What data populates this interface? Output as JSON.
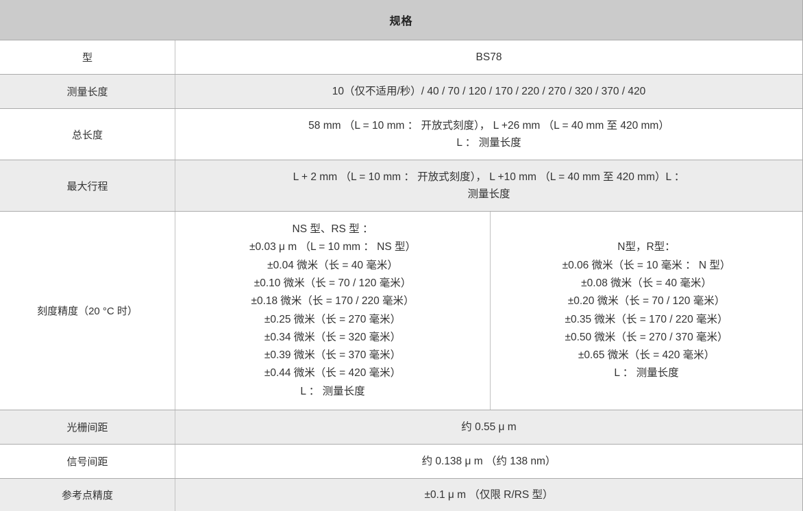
{
  "header": {
    "title": "规格"
  },
  "colors": {
    "header_bg": "#cbcbcb",
    "stripe_bg": "#ececec",
    "border_horizontal": "#ababab",
    "border_vertical": "#c2c2c2",
    "text": "#333333",
    "background": "#ffffff"
  },
  "table": {
    "rows": [
      {
        "label": "型",
        "lines": [
          "BS78"
        ]
      },
      {
        "label": "测量长度",
        "lines": [
          "10（仅不适用/秒）/ 40 / 70 / 120 / 170 / 220 / 270 / 320 / 370 / 420"
        ]
      },
      {
        "label": "总长度",
        "lines": [
          "58 mm （L = 10 mm ： 开放式刻度）， L +26 mm （L = 40 mm 至 420 mm）",
          "L ： 测量长度"
        ]
      },
      {
        "label": "最大行程",
        "lines": [
          "L + 2 mm （L = 10 mm ： 开放式刻度）， L +10 mm （L = 40 mm 至 420 mm）L ：",
          "测量长度"
        ]
      },
      {
        "label": "刻度精度（20 °C 时）",
        "left_lines": [
          "NS 型、RS 型 ：",
          "±0.03 μ m （L = 10 mm ： NS 型）",
          "±0.04 微米（长 = 40 毫米）",
          "±0.10 微米（长 = 70 / 120 毫米）",
          "±0.18 微米（长 = 170 / 220 毫米）",
          "±0.25 微米（长 = 270 毫米）",
          "±0.34 微米（长 = 320 毫米）",
          "±0.39 微米（长 = 370 毫米）",
          "±0.44 微米（长 = 420 毫米）",
          "L ： 测量长度"
        ],
        "right_lines": [
          "N型，R型：",
          "±0.06 微米（长 = 10 毫米 ： N 型）",
          "±0.08 微米（长 = 40 毫米）",
          "±0.20 微米（长 = 70 / 120 毫米）",
          "±0.35 微米（长 = 170 / 220 毫米）",
          "±0.50 微米（长 = 270 / 370 毫米）",
          "±0.65 微米（长 = 420 毫米）",
          "L ： 测量长度"
        ]
      },
      {
        "label": "光栅间距",
        "lines": [
          "约 0.55 μ m"
        ]
      },
      {
        "label": "信号间距",
        "lines": [
          "约 0.138 μ m （约 138 nm）"
        ]
      },
      {
        "label": "参考点精度",
        "lines": [
          "±0.1 μ m （仅限 R/RS 型）"
        ]
      }
    ]
  }
}
